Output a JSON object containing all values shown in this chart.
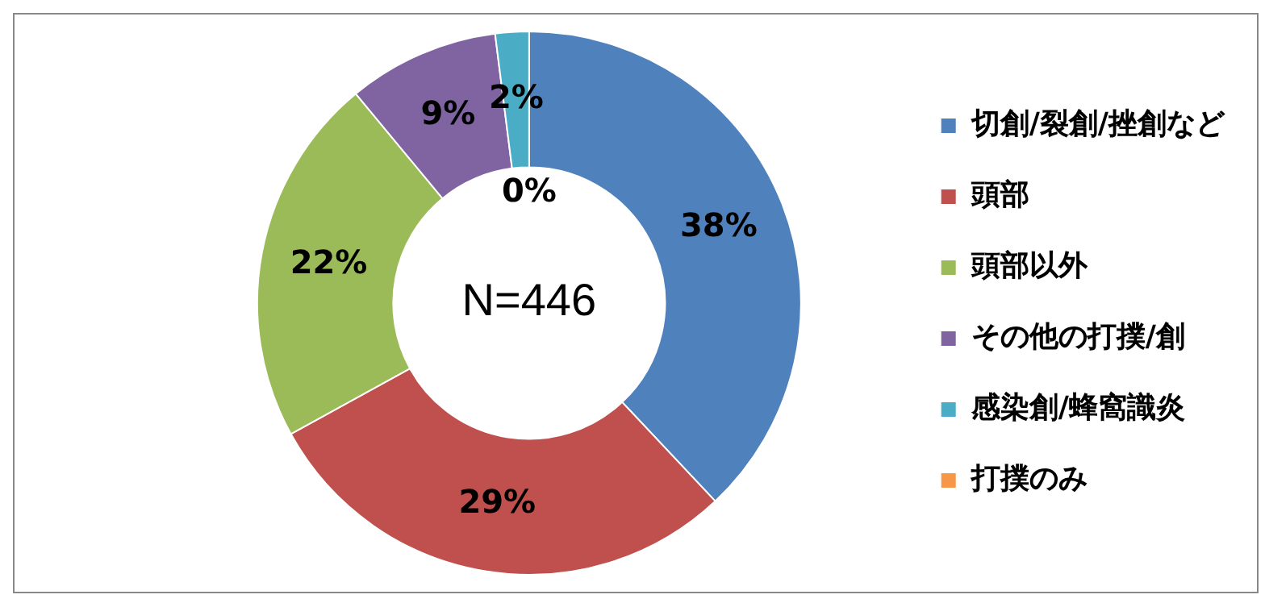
{
  "chart_data": {
    "type": "donut",
    "categories": [
      "切創/裂創/挫創など",
      "頭部",
      "頭部以外",
      "その他の打撲/創",
      "感染創/蜂窩識炎",
      "打撲のみ"
    ],
    "values": [
      38,
      29,
      22,
      9,
      2,
      0
    ],
    "value_labels": [
      "38%",
      "29%",
      "22%",
      "9%",
      "2%",
      "0%"
    ],
    "colors": [
      "#4f81bd",
      "#c0504d",
      "#9bbb59",
      "#8064a2",
      "#4bacc6",
      "#f79646"
    ],
    "annotations": [
      "N=446"
    ],
    "legend": "right"
  }
}
